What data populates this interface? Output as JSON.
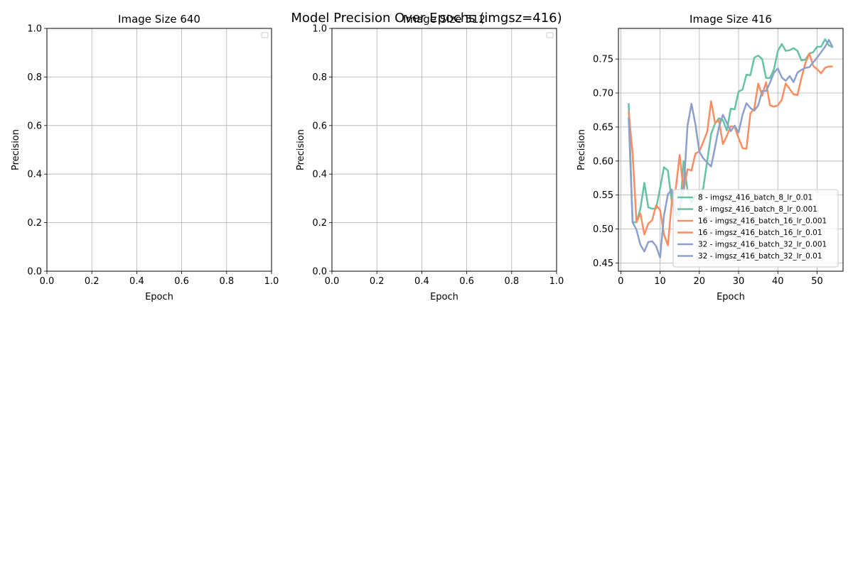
{
  "figure": {
    "suptitle": "Model Precision Over Epochs (imgsz=416)"
  },
  "chart_data": [
    {
      "type": "line",
      "title": "Image Size 640",
      "xlabel": "Epoch",
      "ylabel": "Precision",
      "xlim": [
        0,
        1
      ],
      "ylim": [
        0,
        1
      ],
      "xticks": [
        "0.0",
        "0.2",
        "0.4",
        "0.6",
        "0.8",
        "1.0"
      ],
      "yticks": [
        "0.0",
        "0.2",
        "0.4",
        "0.6",
        "0.8",
        "1.0"
      ],
      "grid": true,
      "legend": "upper right (empty)",
      "series": []
    },
    {
      "type": "line",
      "title": "Image Size 512",
      "xlabel": "Epoch",
      "ylabel": "Precision",
      "xlim": [
        0,
        1
      ],
      "ylim": [
        0,
        1
      ],
      "xticks": [
        "0.0",
        "0.2",
        "0.4",
        "0.6",
        "0.8",
        "1.0"
      ],
      "yticks": [
        "0.0",
        "0.2",
        "0.4",
        "0.6",
        "0.8",
        "1.0"
      ],
      "grid": true,
      "legend": "upper right (empty)",
      "series": []
    },
    {
      "type": "line",
      "title": "Image Size 416",
      "xlabel": "Epoch",
      "ylabel": "Precision",
      "xlim": [
        -0.6,
        56.6
      ],
      "ylim": [
        0.438,
        0.795
      ],
      "xticks": [
        0,
        10,
        20,
        30,
        40,
        50
      ],
      "yticks": [
        0.45,
        0.5,
        0.55,
        0.6,
        0.65,
        0.7,
        0.75
      ],
      "grid": true,
      "legend": "lower right",
      "series": [
        {
          "name": "8 - imgsz_416_batch_8_lr_0.01",
          "color": "#66c2a5",
          "x": [
            2,
            3,
            4,
            5,
            6,
            7,
            8,
            9,
            10,
            11,
            12,
            13,
            14,
            15,
            16,
            17,
            18,
            19,
            20,
            21,
            22,
            23,
            24,
            25,
            26,
            27,
            28,
            29,
            30,
            31,
            32,
            33,
            34,
            35,
            36,
            37,
            38,
            39,
            40,
            41,
            42,
            43,
            44,
            45,
            46,
            47,
            48,
            49,
            50,
            51,
            52,
            53,
            54
          ],
          "y": [
            0.685,
            0.51,
            0.51,
            0.53,
            0.568,
            0.532,
            0.53,
            0.53,
            0.56,
            0.591,
            0.586,
            0.54,
            0.523,
            0.52,
            0.6,
            0.557,
            0.538,
            0.55,
            0.548,
            0.56,
            0.6,
            0.64,
            0.655,
            0.663,
            0.66,
            0.645,
            0.677,
            0.676,
            0.702,
            0.705,
            0.727,
            0.726,
            0.752,
            0.755,
            0.75,
            0.722,
            0.722,
            0.735,
            0.762,
            0.772,
            0.762,
            0.763,
            0.766,
            0.762,
            0.748,
            0.749,
            0.758,
            0.76,
            0.768,
            0.768,
            0.779,
            0.77,
            0.767
          ]
        },
        {
          "name": "8 - imgsz_416_batch_8_lr_0.001",
          "color": "#66c2a5",
          "x": [],
          "y": []
        },
        {
          "name": "16 - imgsz_416_batch_16_lr_0.001",
          "color": "#fc8d62",
          "x": [
            2,
            3,
            4,
            5,
            6,
            7,
            8,
            9,
            10,
            11,
            12,
            13,
            14,
            15,
            16,
            17,
            18,
            19,
            20,
            21,
            22,
            23,
            24,
            25,
            26,
            27,
            28,
            29,
            30,
            31,
            32,
            33,
            34,
            35,
            36,
            37,
            38,
            39,
            40,
            41,
            42,
            43,
            44,
            45,
            46,
            47,
            48,
            49,
            50,
            51,
            52,
            53,
            54
          ],
          "y": [
            0.673,
            0.612,
            0.51,
            0.523,
            0.492,
            0.508,
            0.513,
            0.535,
            0.528,
            0.492,
            0.476,
            0.541,
            0.56,
            0.609,
            0.556,
            0.588,
            0.586,
            0.611,
            0.614,
            0.628,
            0.643,
            0.688,
            0.656,
            0.66,
            0.625,
            0.637,
            0.651,
            0.65,
            0.634,
            0.619,
            0.618,
            0.67,
            0.677,
            0.714,
            0.696,
            0.716,
            0.682,
            0.68,
            0.682,
            0.69,
            0.714,
            0.706,
            0.698,
            0.697,
            0.722,
            0.744,
            0.758,
            0.74,
            0.735,
            0.729,
            0.737,
            0.739,
            0.739
          ]
        },
        {
          "name": "16 - imgsz_416_batch_16_lr_0.01",
          "color": "#fc8d62",
          "x": [],
          "y": []
        },
        {
          "name": "32 - imgsz_416_batch_32_lr_0.001",
          "color": "#8da0cb",
          "x": [
            2,
            3,
            4,
            5,
            6,
            7,
            8,
            9,
            10,
            11,
            12,
            13,
            14,
            15,
            16,
            17,
            18,
            19,
            20,
            21,
            22,
            23,
            24,
            25,
            26,
            27,
            28,
            29,
            30,
            31,
            32,
            33,
            34,
            35,
            36,
            37,
            38,
            39,
            40,
            41,
            42,
            43,
            44,
            45,
            46,
            47,
            48,
            49,
            50,
            51,
            52,
            53,
            54
          ],
          "y": [
            0.664,
            0.51,
            0.499,
            0.477,
            0.467,
            0.481,
            0.482,
            0.475,
            0.458,
            0.52,
            0.551,
            0.558,
            0.52,
            0.53,
            0.556,
            0.652,
            0.684,
            0.654,
            0.614,
            0.604,
            0.598,
            0.592,
            0.62,
            0.65,
            0.668,
            0.656,
            0.644,
            0.652,
            0.642,
            0.668,
            0.685,
            0.678,
            0.674,
            0.682,
            0.703,
            0.703,
            0.715,
            0.73,
            0.736,
            0.723,
            0.718,
            0.725,
            0.716,
            0.73,
            0.734,
            0.737,
            0.738,
            0.745,
            0.752,
            0.76,
            0.768,
            0.778,
            0.767
          ]
        },
        {
          "name": "32 - imgsz_416_batch_32_lr_0.01",
          "color": "#8da0cb",
          "x": [],
          "y": []
        }
      ]
    }
  ]
}
